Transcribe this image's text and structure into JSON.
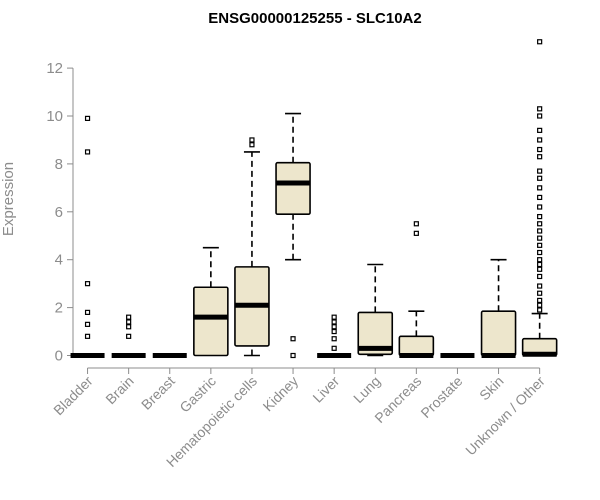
{
  "chart_data": {
    "type": "box",
    "title": "ENSG00000125255 - SLC10A2",
    "xlabel": "",
    "ylabel": "Expression",
    "ylim": [
      0,
      13
    ],
    "yticks": [
      0,
      2,
      4,
      6,
      8,
      10,
      12
    ],
    "grid": false,
    "colors": {
      "box_fill": "#ede6cc",
      "box_stroke": "#000000",
      "axis": "#8c8c8c"
    },
    "categories": [
      "Bladder",
      "Brain",
      "Breast",
      "Gastric",
      "Hematopoietic cells",
      "Kidney",
      "Liver",
      "Lung",
      "Pancreas",
      "Prostate",
      "Skin",
      "Unknown / Other"
    ],
    "boxes": [
      {
        "category": "Bladder",
        "min": 0,
        "q1": 0,
        "median": 0,
        "q3": 0,
        "max": 0,
        "outliers": [
          0.8,
          1.3,
          1.8,
          3.0,
          8.5,
          9.9
        ]
      },
      {
        "category": "Brain",
        "min": 0,
        "q1": 0,
        "median": 0,
        "q3": 0,
        "max": 0,
        "outliers": [
          0.8,
          1.2,
          1.4,
          1.6
        ]
      },
      {
        "category": "Breast",
        "min": 0,
        "q1": 0,
        "median": 0,
        "q3": 0,
        "max": 0,
        "outliers": []
      },
      {
        "category": "Gastric",
        "min": 0,
        "q1": 0,
        "median": 1.6,
        "q3": 2.85,
        "max": 4.5,
        "outliers": []
      },
      {
        "category": "Hematopoietic cells",
        "min": 0,
        "q1": 0.4,
        "median": 2.1,
        "q3": 3.7,
        "max": 8.5,
        "outliers": [
          8.8,
          9.0
        ]
      },
      {
        "category": "Kidney",
        "min": 4.0,
        "q1": 5.9,
        "median": 7.2,
        "q3": 8.05,
        "max": 10.1,
        "outliers": [
          0.7,
          0.0
        ]
      },
      {
        "category": "Liver",
        "min": 0,
        "q1": 0,
        "median": 0,
        "q3": 0,
        "max": 0,
        "outliers": [
          0.3,
          0.7,
          1.0,
          1.2,
          1.4,
          1.6
        ]
      },
      {
        "category": "Lung",
        "min": 0,
        "q1": 0.05,
        "median": 0.3,
        "q3": 1.8,
        "max": 3.8,
        "outliers": []
      },
      {
        "category": "Pancreas",
        "min": 0,
        "q1": 0,
        "median": 0,
        "q3": 0.8,
        "max": 1.85,
        "outliers": [
          5.1,
          5.5
        ]
      },
      {
        "category": "Prostate",
        "min": 0,
        "q1": 0,
        "median": 0,
        "q3": 0,
        "max": 0,
        "outliers": []
      },
      {
        "category": "Skin",
        "min": 0,
        "q1": 0,
        "median": 0,
        "q3": 1.85,
        "max": 4.0,
        "outliers": []
      },
      {
        "category": "Unknown / Other",
        "min": 0,
        "q1": 0,
        "median": 0.05,
        "q3": 0.7,
        "max": 1.75,
        "outliers": [
          1.9,
          2.1,
          2.3,
          2.6,
          2.9,
          3.3,
          3.6,
          3.8,
          4.0,
          4.3,
          4.6,
          4.9,
          5.2,
          5.5,
          5.8,
          6.2,
          6.6,
          7.0,
          7.4,
          7.7,
          8.3,
          8.6,
          9.0,
          9.4,
          10.0,
          10.3,
          13.1
        ]
      }
    ]
  }
}
